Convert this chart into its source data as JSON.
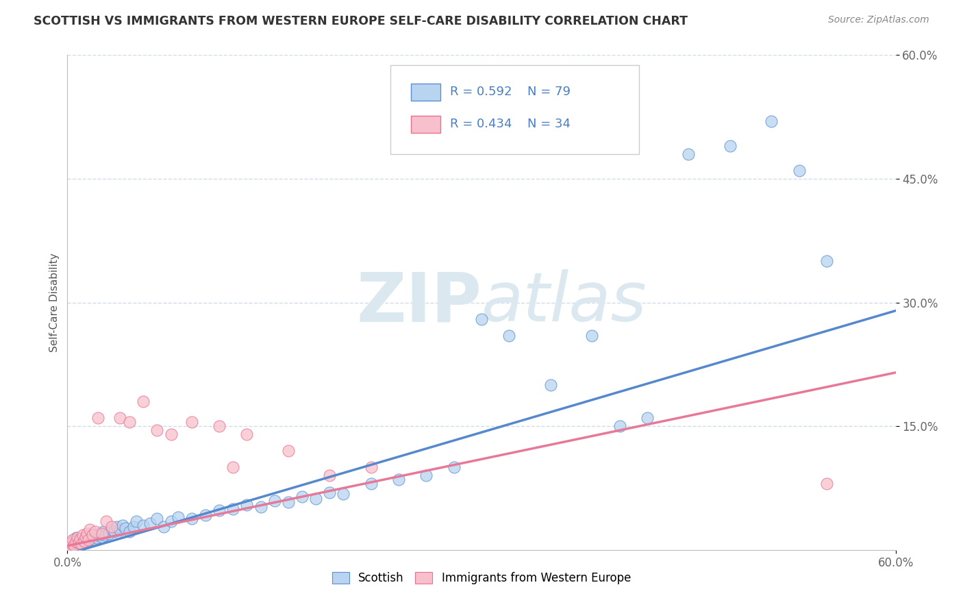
{
  "title": "SCOTTISH VS IMMIGRANTS FROM WESTERN EUROPE SELF-CARE DISABILITY CORRELATION CHART",
  "source": "Source: ZipAtlas.com",
  "ylabel": "Self-Care Disability",
  "x_min": 0.0,
  "x_max": 0.6,
  "y_min": 0.0,
  "y_max": 0.6,
  "legend_r1": "0.592",
  "legend_n1": "79",
  "legend_r2": "0.434",
  "legend_n2": "34",
  "blue_fill": "#b8d4f0",
  "blue_edge": "#5a90d0",
  "blue_line": "#5588cc",
  "pink_fill": "#f8c0cc",
  "pink_edge": "#e87090",
  "pink_line": "#e87898",
  "legend_text_color": "#4a7fc1",
  "title_color": "#333333",
  "watermark_color": "#dce8f0",
  "background_color": "#ffffff",
  "grid_color": "#d0dde8",
  "scottish_x": [
    0.002,
    0.003,
    0.004,
    0.005,
    0.005,
    0.006,
    0.006,
    0.007,
    0.007,
    0.008,
    0.008,
    0.009,
    0.009,
    0.01,
    0.01,
    0.011,
    0.011,
    0.012,
    0.012,
    0.013,
    0.013,
    0.014,
    0.014,
    0.015,
    0.015,
    0.016,
    0.017,
    0.018,
    0.019,
    0.02,
    0.021,
    0.022,
    0.023,
    0.025,
    0.026,
    0.027,
    0.03,
    0.032,
    0.034,
    0.036,
    0.038,
    0.04,
    0.042,
    0.045,
    0.048,
    0.05,
    0.055,
    0.06,
    0.065,
    0.07,
    0.075,
    0.08,
    0.09,
    0.1,
    0.11,
    0.12,
    0.13,
    0.14,
    0.15,
    0.16,
    0.17,
    0.18,
    0.19,
    0.2,
    0.22,
    0.24,
    0.26,
    0.28,
    0.3,
    0.32,
    0.35,
    0.38,
    0.4,
    0.42,
    0.45,
    0.48,
    0.51,
    0.53,
    0.55
  ],
  "scottish_y": [
    0.005,
    0.008,
    0.01,
    0.003,
    0.012,
    0.007,
    0.015,
    0.004,
    0.01,
    0.008,
    0.013,
    0.006,
    0.011,
    0.009,
    0.014,
    0.007,
    0.012,
    0.008,
    0.013,
    0.01,
    0.016,
    0.009,
    0.014,
    0.011,
    0.015,
    0.012,
    0.018,
    0.013,
    0.016,
    0.012,
    0.015,
    0.018,
    0.02,
    0.016,
    0.022,
    0.018,
    0.02,
    0.025,
    0.022,
    0.028,
    0.024,
    0.03,
    0.026,
    0.022,
    0.028,
    0.035,
    0.03,
    0.032,
    0.038,
    0.028,
    0.035,
    0.04,
    0.038,
    0.042,
    0.048,
    0.05,
    0.055,
    0.052,
    0.06,
    0.058,
    0.065,
    0.062,
    0.07,
    0.068,
    0.08,
    0.085,
    0.09,
    0.1,
    0.28,
    0.26,
    0.2,
    0.26,
    0.15,
    0.16,
    0.48,
    0.49,
    0.52,
    0.46,
    0.35
  ],
  "immigrant_x": [
    0.002,
    0.003,
    0.004,
    0.005,
    0.006,
    0.007,
    0.008,
    0.009,
    0.01,
    0.011,
    0.012,
    0.013,
    0.014,
    0.015,
    0.016,
    0.018,
    0.02,
    0.022,
    0.025,
    0.028,
    0.032,
    0.038,
    0.045,
    0.055,
    0.065,
    0.075,
    0.09,
    0.11,
    0.13,
    0.16,
    0.19,
    0.22,
    0.12,
    0.55
  ],
  "immigrant_y": [
    0.004,
    0.008,
    0.012,
    0.006,
    0.01,
    0.015,
    0.009,
    0.013,
    0.007,
    0.018,
    0.011,
    0.016,
    0.02,
    0.012,
    0.025,
    0.018,
    0.022,
    0.16,
    0.02,
    0.035,
    0.028,
    0.16,
    0.155,
    0.18,
    0.145,
    0.14,
    0.155,
    0.15,
    0.14,
    0.12,
    0.09,
    0.1,
    0.1,
    0.08
  ],
  "blue_line_x0": 0.0,
  "blue_line_y0": -0.005,
  "blue_line_x1": 0.6,
  "blue_line_y1": 0.29,
  "pink_line_x0": 0.0,
  "pink_line_y0": 0.005,
  "pink_line_x1": 0.6,
  "pink_line_y1": 0.215
}
